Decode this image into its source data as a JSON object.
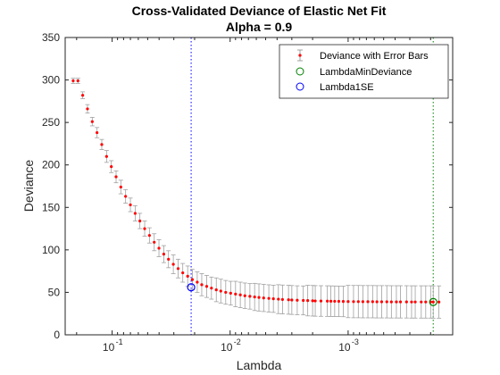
{
  "chart_data": {
    "type": "scatter",
    "title": "Cross-Validated Deviance of Elastic Net Fit",
    "subtitle": "Alpha = 0.9",
    "xlabel": "Lambda",
    "ylabel": "Deviance",
    "x_scale": "log-reversed",
    "xlim": [
      0.25,
      0.00013
    ],
    "ylim": [
      0,
      350
    ],
    "yticks": [
      0,
      50,
      100,
      150,
      200,
      250,
      300,
      350
    ],
    "xticks": [
      {
        "value": 0.1,
        "label": "10",
        "exp": "-1"
      },
      {
        "value": 0.01,
        "label": "10",
        "exp": "-2"
      },
      {
        "value": 0.001,
        "label": "10",
        "exp": "-3"
      }
    ],
    "grid": false,
    "legend_position": "top-right",
    "series": [
      {
        "name": "Deviance with Error Bars",
        "color": "#ff0000",
        "errorbar_color": "#a0a0a0",
        "x": [
          0.2138,
          0.1949,
          0.1776,
          0.1618,
          0.1474,
          0.1343,
          0.1224,
          0.1115,
          0.1016,
          0.0926,
          0.0844,
          0.0769,
          0.07,
          0.0638,
          0.0582,
          0.053,
          0.0483,
          0.044,
          0.0401,
          0.0365,
          0.0333,
          0.0303,
          0.0276,
          0.0252,
          0.0229,
          0.0209,
          0.019,
          0.0174,
          0.0158,
          0.0144,
          0.0131,
          0.012,
          0.0109,
          0.0099,
          0.009,
          0.0082,
          0.0075,
          0.0068,
          0.0062,
          0.0057,
          0.0052,
          0.0047,
          0.0043,
          0.0039,
          0.0036,
          0.0032,
          0.003,
          0.0027,
          0.0024,
          0.0022,
          0.002,
          0.0019,
          0.0017,
          0.0015,
          0.0014,
          0.0013,
          0.0012,
          0.0011,
          0.001,
          0.0009,
          0.00082,
          0.00075,
          0.00068,
          0.00062,
          0.00057,
          0.00052,
          0.00047,
          0.00043,
          0.00039,
          0.00036,
          0.00032,
          0.00029,
          0.00027,
          0.00024,
          0.00022,
          0.0002,
          0.00019,
          0.00017
        ],
        "y": [
          299,
          299,
          282,
          266,
          251,
          238,
          224,
          210,
          198,
          186,
          174,
          163,
          153,
          143,
          134,
          125,
          117,
          109,
          102,
          95,
          89,
          83,
          78,
          73,
          69,
          65,
          62,
          59,
          57,
          55,
          53,
          51.5,
          50,
          49,
          48,
          47,
          46,
          45.3,
          44.6,
          44,
          43.4,
          42.9,
          42.4,
          42,
          41.6,
          41.3,
          41,
          40.7,
          40.5,
          40.3,
          40.1,
          39.9,
          39.8,
          39.7,
          39.6,
          39.5,
          39.4,
          39.3,
          39.2,
          39.1,
          39.1,
          39,
          39,
          39,
          38.9,
          38.9,
          38.9,
          38.8,
          38.8,
          38.8,
          38.8,
          38.7,
          38.7,
          38.7,
          38.7,
          38.7,
          38.6,
          38.6
        ],
        "err": [
          3,
          3,
          4,
          5,
          5,
          6,
          6,
          7,
          7,
          7,
          8,
          8,
          8,
          9,
          9,
          9,
          9,
          10,
          10,
          10,
          10,
          11,
          11,
          11,
          12,
          12,
          12,
          13,
          13,
          13,
          14,
          14,
          14,
          14,
          15,
          15,
          15,
          15,
          16,
          16,
          16,
          16,
          16,
          17,
          17,
          17,
          17,
          17,
          17,
          18,
          18,
          18,
          18,
          18,
          18,
          18,
          18,
          18,
          19,
          19,
          19,
          19,
          19,
          19,
          19,
          19,
          19,
          19,
          19,
          19,
          19,
          19,
          19,
          19,
          19,
          19,
          19,
          19
        ]
      },
      {
        "name": "LambdaMinDeviance",
        "color": "#008000",
        "marker": "circle",
        "x": [
          0.00019
        ],
        "y": [
          38.6
        ]
      },
      {
        "name": "Lambda1SE",
        "color": "#0000ff",
        "marker": "circle",
        "x": [
          0.0214
        ],
        "y": [
          56
        ]
      }
    ],
    "reference_lines": [
      {
        "series": "Lambda1SE",
        "x": 0.0214,
        "color": "#0000ff",
        "style": "dotted"
      },
      {
        "series": "LambdaMinDeviance",
        "x": 0.00019,
        "color": "#008000",
        "style": "dotted"
      }
    ]
  }
}
